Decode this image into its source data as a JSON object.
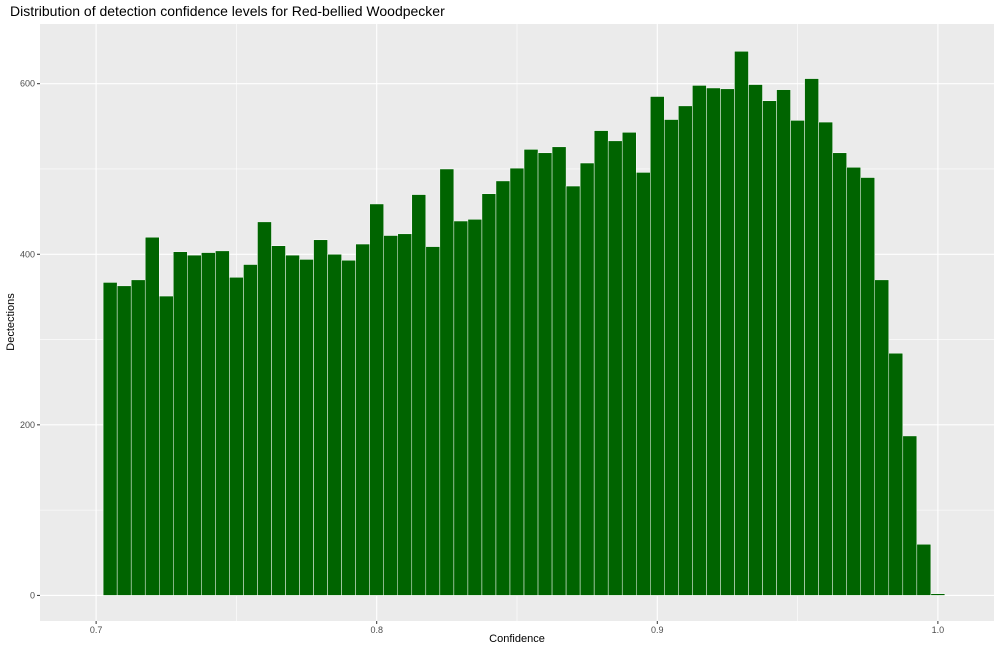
{
  "chart_data": {
    "type": "bar",
    "title": "Distribution of detection confidence levels for Red-bellied Woodpecker",
    "xlabel": "Confidence",
    "ylabel": "Dectections",
    "xlim": [
      0.68,
      1.02
    ],
    "ylim": [
      -30,
      670
    ],
    "x_ticks": [
      0.7,
      0.8,
      0.9,
      1.0
    ],
    "x_tick_labels": [
      "0.7",
      "0.8",
      "0.9",
      "1.0"
    ],
    "y_ticks": [
      0,
      200,
      400,
      600
    ],
    "y_tick_labels": [
      "0",
      "200",
      "400",
      "600"
    ],
    "grid": true,
    "bin_start": 0.7025,
    "bin_width": 0.005,
    "bar_color": "#006400",
    "bar_outline": "#ffffff",
    "panel_background": "#ebebeb",
    "values": [
      367,
      363,
      370,
      420,
      351,
      403,
      399,
      402,
      404,
      373,
      388,
      438,
      410,
      399,
      394,
      417,
      400,
      393,
      412,
      459,
      422,
      424,
      470,
      409,
      500,
      439,
      441,
      471,
      486,
      501,
      523,
      519,
      526,
      480,
      507,
      545,
      533,
      543,
      496,
      585,
      558,
      574,
      598,
      595,
      594,
      638,
      599,
      580,
      593,
      557,
      606,
      555,
      519,
      502,
      490,
      370,
      284,
      187,
      60,
      2
    ]
  }
}
